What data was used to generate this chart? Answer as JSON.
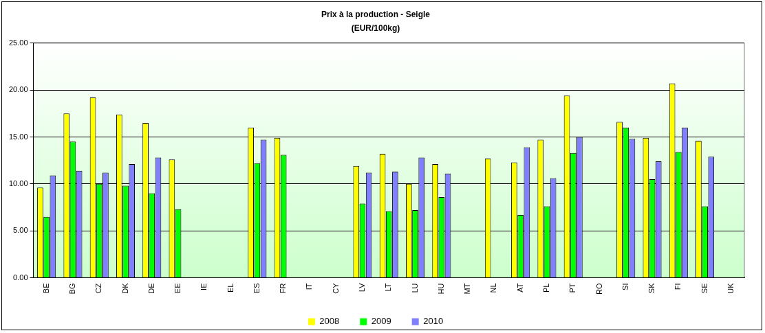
{
  "chart_data": {
    "type": "bar",
    "title": "Prix à la production - Seigle",
    "subtitle": "(EUR/100kg)",
    "categories": [
      "BE",
      "BG",
      "CZ",
      "DK",
      "DE",
      "EE",
      "IE",
      "EL",
      "ES",
      "FR",
      "IT",
      "CY",
      "LV",
      "LT",
      "LU",
      "HU",
      "MT",
      "NL",
      "AT",
      "PL",
      "PT",
      "RO",
      "SI",
      "SK",
      "FI",
      "SE",
      "UK"
    ],
    "series": [
      {
        "name": "2008",
        "color": "#ffff00",
        "values": [
          9.6,
          17.5,
          19.2,
          17.4,
          16.5,
          12.6,
          null,
          null,
          16.0,
          14.9,
          null,
          null,
          11.9,
          13.2,
          10.0,
          12.1,
          null,
          12.7,
          12.3,
          14.7,
          19.4,
          null,
          16.6,
          14.9,
          20.7,
          14.6,
          null
        ]
      },
      {
        "name": "2009",
        "color": "#00ff00",
        "values": [
          6.5,
          14.5,
          10.0,
          9.8,
          9.0,
          7.3,
          null,
          null,
          12.2,
          13.1,
          null,
          null,
          7.9,
          7.1,
          7.2,
          8.6,
          null,
          null,
          6.7,
          7.6,
          13.3,
          null,
          16.0,
          10.5,
          13.4,
          7.6,
          null
        ]
      },
      {
        "name": "2010",
        "color": "#8080ff",
        "values": [
          10.9,
          11.4,
          11.2,
          12.1,
          12.8,
          null,
          null,
          null,
          14.7,
          null,
          null,
          null,
          11.2,
          11.3,
          12.8,
          11.1,
          null,
          null,
          13.9,
          10.6,
          15.0,
          null,
          14.8,
          12.4,
          16.0,
          12.9,
          null
        ]
      }
    ],
    "ylim": [
      0,
      25
    ],
    "yticks": [
      {
        "value": 0,
        "label": "0.00"
      },
      {
        "value": 5,
        "label": "5.00"
      },
      {
        "value": 10,
        "label": "10.00"
      },
      {
        "value": 15,
        "label": "15.00"
      },
      {
        "value": 20,
        "label": "20.00"
      },
      {
        "value": 25,
        "label": "25.00"
      }
    ],
    "grid": "y",
    "legend": "bottom"
  }
}
